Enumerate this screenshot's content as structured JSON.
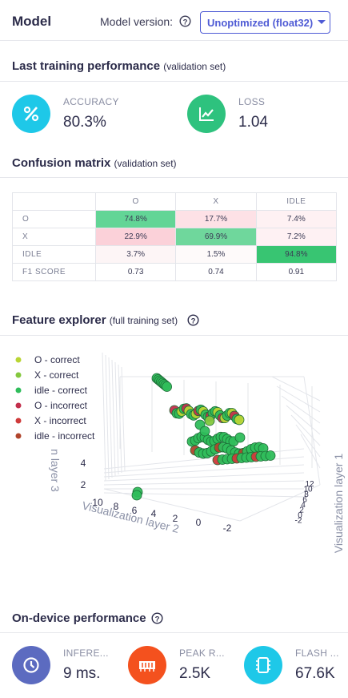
{
  "header": {
    "title": "Model",
    "version_label": "Model version:",
    "version_value": "Unoptimized (float32)"
  },
  "training": {
    "title": "Last training performance",
    "note": "(validation set)",
    "metrics": [
      {
        "label": "ACCURACY",
        "value": "80.3%",
        "color": "#1ec8e8"
      },
      {
        "label": "LOSS",
        "value": "1.04",
        "color": "#2ec27e"
      }
    ]
  },
  "confusion": {
    "title": "Confusion matrix",
    "note": "(validation set)",
    "columns": [
      "O",
      "X",
      "IDLE"
    ],
    "rows": [
      {
        "label": "O",
        "cells": [
          "74.8%",
          "17.7%",
          "7.4%"
        ],
        "colors": [
          "#62d596",
          "#fde1e6",
          "#fef1f3"
        ]
      },
      {
        "label": "X",
        "cells": [
          "22.9%",
          "69.9%",
          "7.2%"
        ],
        "colors": [
          "#fbd1d9",
          "#6fd79c",
          "#fef1f3"
        ]
      },
      {
        "label": "IDLE",
        "cells": [
          "3.7%",
          "1.5%",
          "94.8%"
        ],
        "colors": [
          "#fdf5f6",
          "#fefafa",
          "#38c572"
        ]
      },
      {
        "label": "F1 SCORE",
        "cells": [
          "0.73",
          "0.74",
          "0.91"
        ],
        "colors": [
          "#ffffff",
          "#ffffff",
          "#ffffff"
        ]
      }
    ]
  },
  "features": {
    "title": "Feature explorer",
    "note": "(full training set)",
    "legend": [
      {
        "name": "O - correct",
        "color": "#b9d534"
      },
      {
        "name": "X - correct",
        "color": "#84c83e"
      },
      {
        "name": "idle - correct",
        "color": "#2fbd5b"
      },
      {
        "name": "O - incorrect",
        "color": "#c22f4c"
      },
      {
        "name": "X - incorrect",
        "color": "#cf3a3a"
      },
      {
        "name": "idle - incorrect",
        "color": "#b0452c"
      }
    ],
    "axis_layer1": "Visualization layer 1",
    "axis_layer2": "Visualization layer 2",
    "axis_layer3": "n layer 3",
    "ticks_layer3": [
      "4",
      "2"
    ],
    "ticks_layer2": [
      "10",
      "8",
      "6",
      "4",
      "2",
      "0",
      "-2"
    ],
    "ticks_layer1": [
      "12",
      "10",
      "8",
      "6",
      "4",
      "2",
      "0",
      "-2"
    ]
  },
  "on_device": {
    "title": "On-device performance",
    "metrics": [
      {
        "label": "INFERE...",
        "value": "9 ms.",
        "color": "#5c6bc0"
      },
      {
        "label": "PEAK R...",
        "value": "2.5K",
        "color": "#f4511e"
      },
      {
        "label": "FLASH ...",
        "value": "67.6K",
        "color": "#1ec8e8"
      }
    ]
  }
}
